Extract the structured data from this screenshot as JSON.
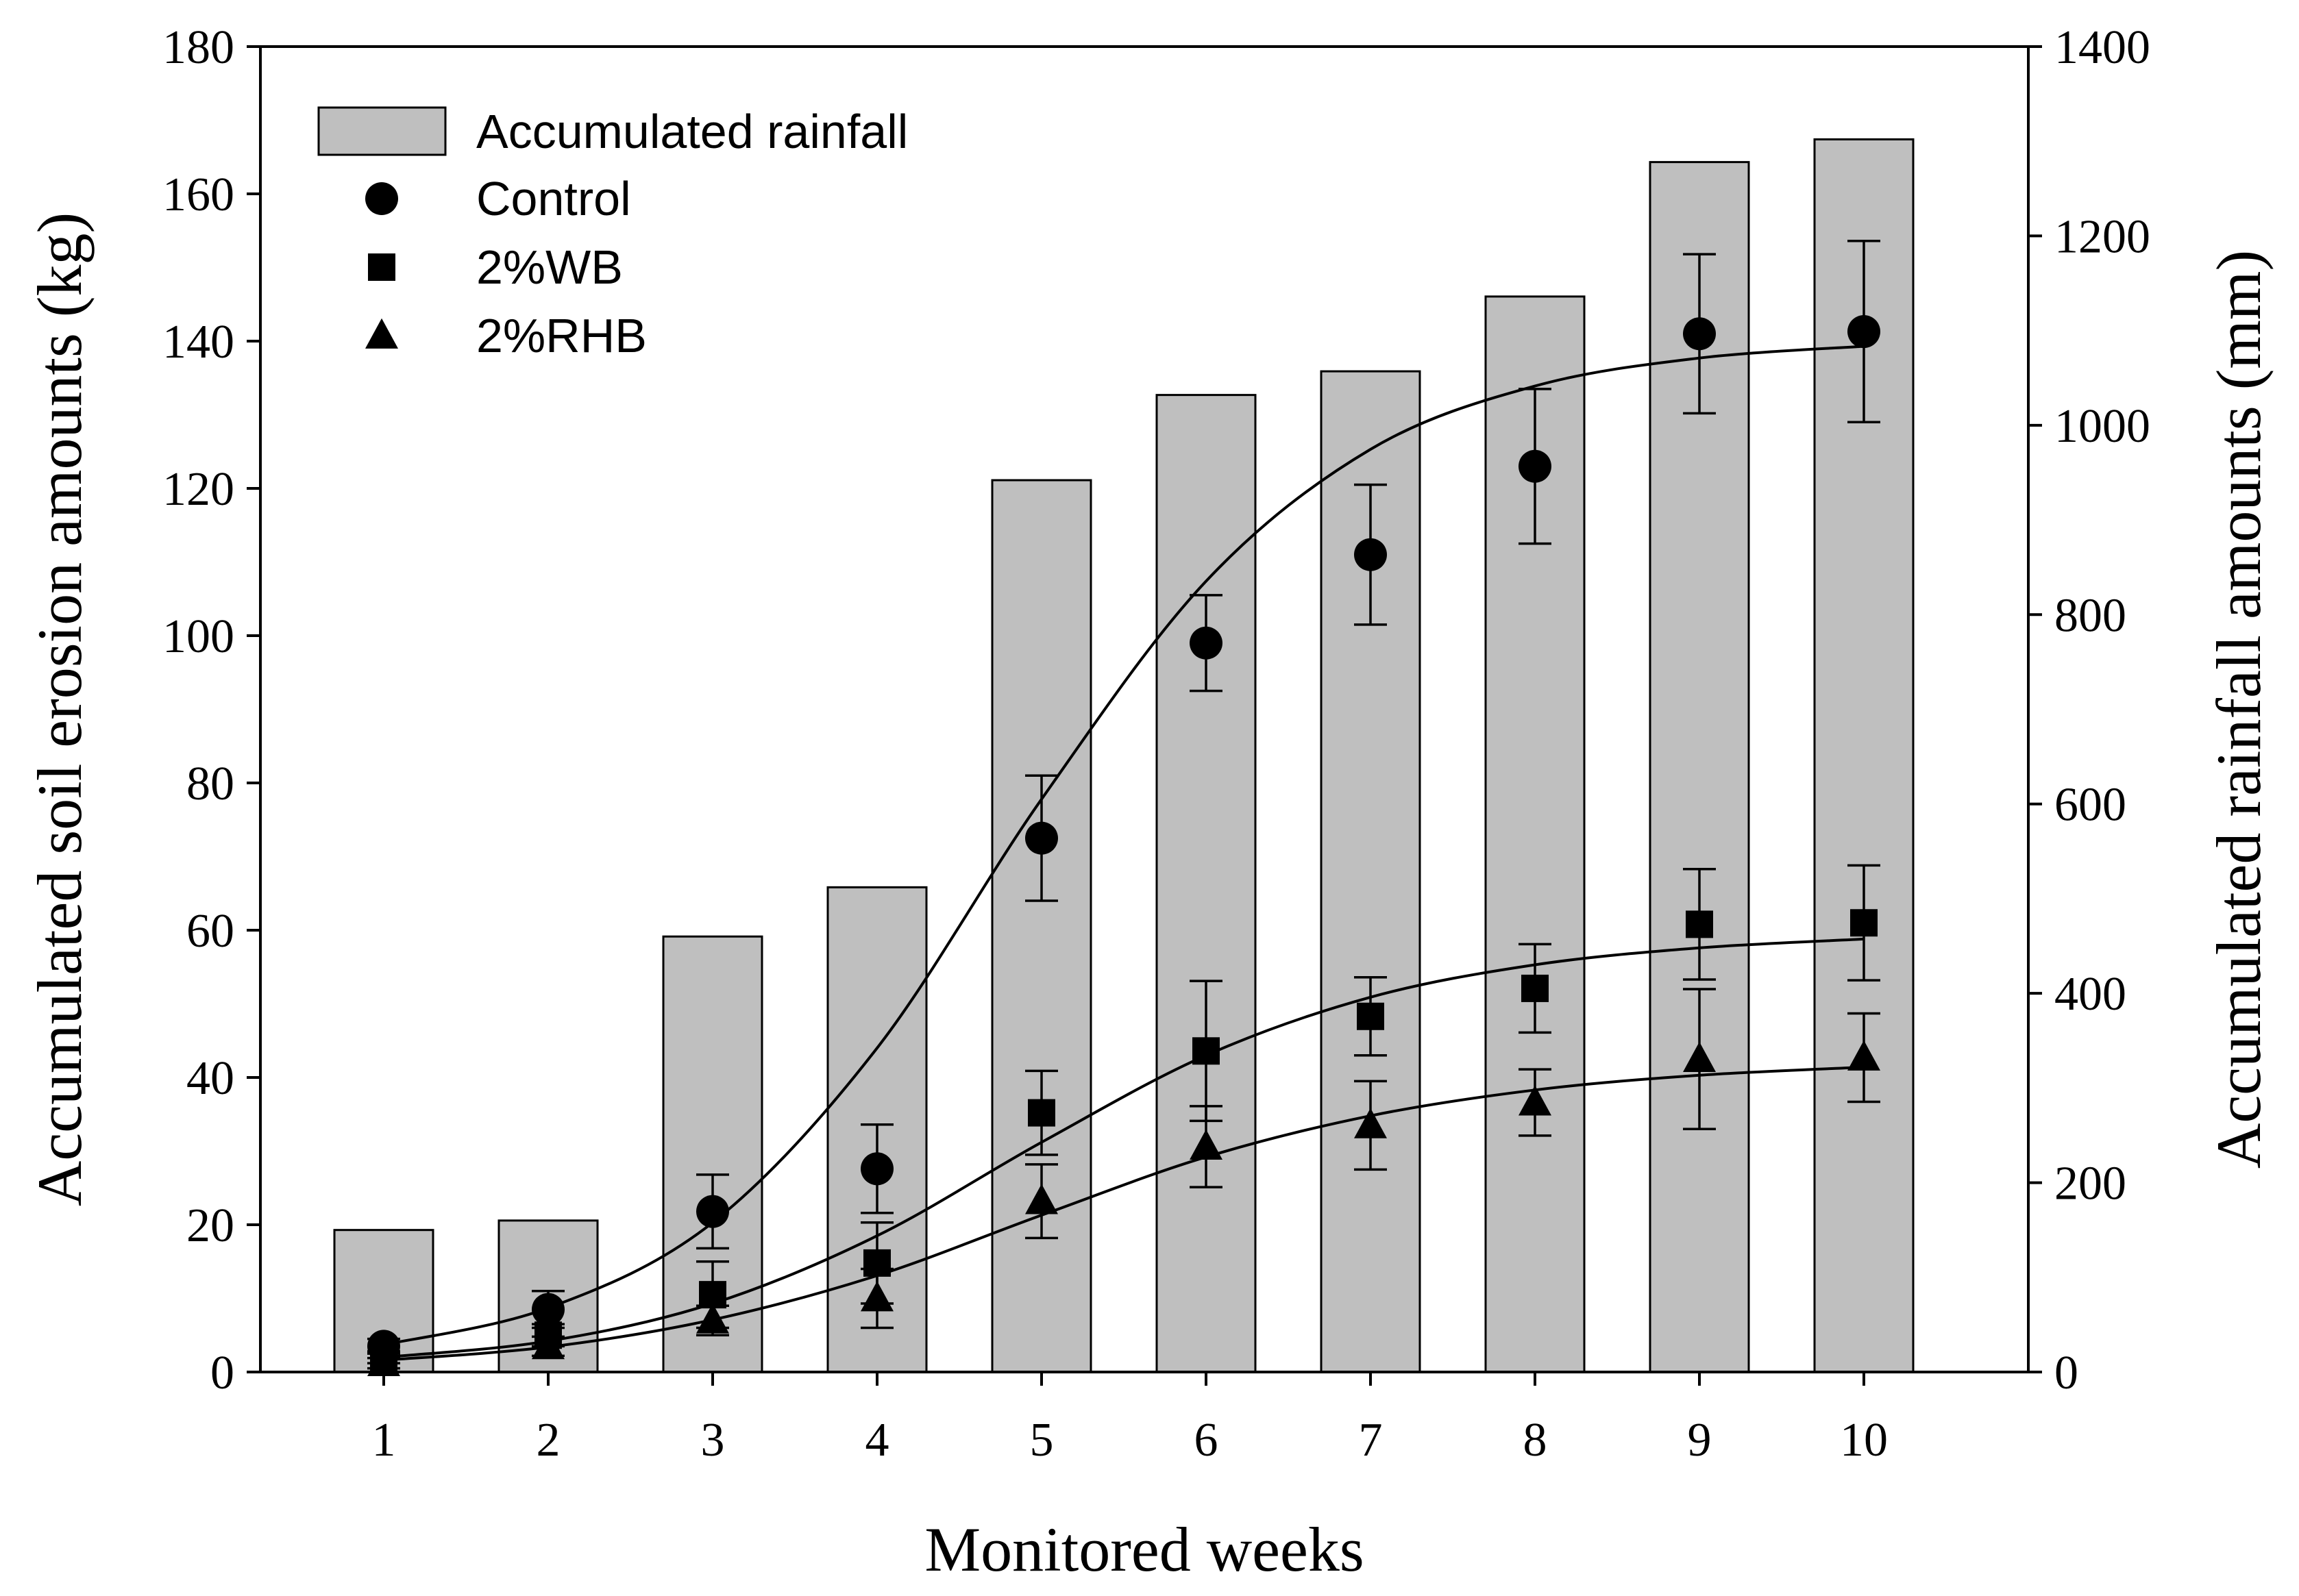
{
  "chart_data": {
    "type": "bar",
    "title": "",
    "xlabel": "Monitored weeks",
    "ylabel_left": "Accumulated soil erosion amounts (kg)",
    "ylabel_right": "Accumulated rainfall amounts (mm)",
    "x": [
      1,
      2,
      3,
      4,
      5,
      6,
      7,
      8,
      9,
      10
    ],
    "x_tick_labels": [
      "1",
      "2",
      "3",
      "4",
      "5",
      "6",
      "7",
      "8",
      "9",
      "10"
    ],
    "ylim_left": [
      0,
      180
    ],
    "yticks_left": [
      "0",
      "20",
      "40",
      "60",
      "80",
      "100",
      "120",
      "140",
      "160",
      "180"
    ],
    "ylim_right": [
      0,
      1400
    ],
    "yticks_right": [
      "0",
      "200",
      "400",
      "600",
      "800",
      "1000",
      "1200",
      "1400"
    ],
    "grid": false,
    "legend_position": "top-left",
    "bars": {
      "name": "Accumulated rainfall",
      "axis": "right",
      "values": [
        150,
        160,
        460,
        512,
        942,
        1032,
        1057,
        1136,
        1278,
        1302
      ],
      "fill": "#bfbfbf",
      "stroke": "#000000"
    },
    "series": [
      {
        "name": "Control",
        "marker": "circle",
        "axis": "left",
        "values": [
          3.5,
          8.5,
          21.8,
          27.6,
          72.5,
          99.0,
          111.0,
          123.0,
          141.0,
          141.3
        ],
        "errors": [
          1.0,
          2.5,
          5.0,
          6.0,
          8.5,
          6.5,
          9.5,
          10.5,
          10.8,
          12.3
        ],
        "fit": [
          3.7,
          8.7,
          20.3,
          44.0,
          77.8,
          107.4,
          125.3,
          133.9,
          137.7,
          139.3
        ]
      },
      {
        "name": "2%WB",
        "marker": "square",
        "axis": "left",
        "values": [
          2.0,
          5.0,
          10.5,
          14.8,
          35.2,
          43.6,
          48.3,
          52.1,
          60.8,
          61.0
        ],
        "errors": [
          0.8,
          1.5,
          4.5,
          5.5,
          5.7,
          9.5,
          5.3,
          6.0,
          7.5,
          7.8
        ],
        "fit": [
          2.0,
          4.2,
          9.3,
          18.5,
          31.2,
          43.0,
          50.9,
          55.3,
          57.6,
          58.8
        ]
      },
      {
        "name": "2%RHB",
        "marker": "triangle",
        "axis": "left",
        "values": [
          1.2,
          3.5,
          7.0,
          10.0,
          23.2,
          30.6,
          33.5,
          36.6,
          42.5,
          42.7
        ],
        "errors": [
          0.7,
          1.3,
          2.0,
          4.0,
          5.0,
          5.5,
          6.0,
          4.5,
          9.5,
          6.0
        ],
        "fit": [
          1.6,
          3.4,
          7.1,
          13.1,
          21.3,
          29.2,
          34.8,
          38.3,
          40.3,
          41.4
        ]
      }
    ]
  }
}
